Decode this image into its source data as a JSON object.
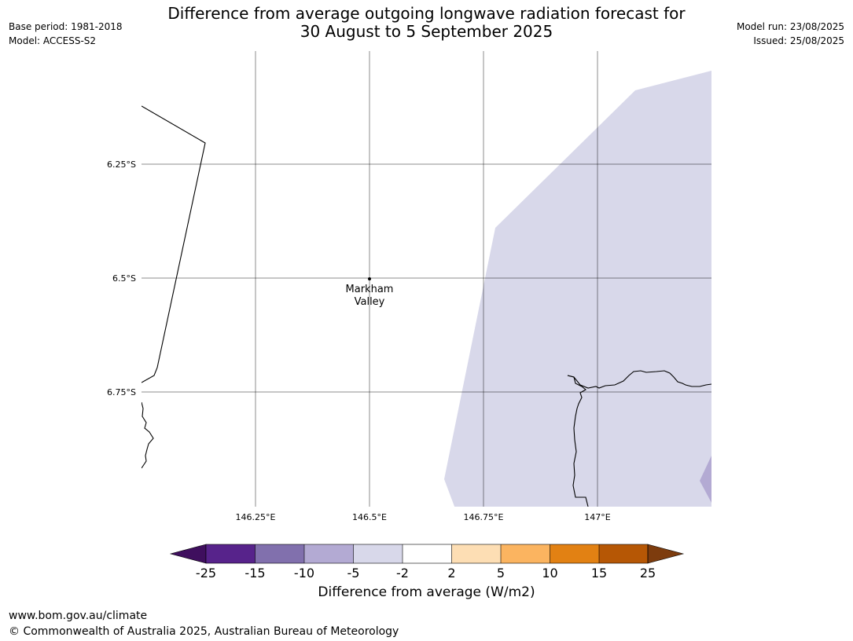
{
  "header": {
    "title_line1": "Difference from average outgoing longwave radiation forecast for",
    "title_line2": "30 August to 5 September 2025",
    "base_period": "Base period: 1981-2018",
    "model": "Model: ACCESS-S2",
    "model_run": "Model run: 23/08/2025",
    "issued": "Issued: 25/08/2025"
  },
  "map": {
    "lat_labels": [
      "6.25°S",
      "6.5°S",
      "6.75°S"
    ],
    "lon_labels": [
      "146.25°E",
      "146.5°E",
      "146.75°E",
      "147°E"
    ],
    "location": {
      "name_line1": "Markham",
      "name_line2": "Valley",
      "lat": -6.5,
      "lon": 146.5
    },
    "anomaly_fill_color": "#d8d8ea",
    "anomaly_fill_color_strong": "#b3aad3"
  },
  "colorbar": {
    "label": "Difference from average (W/m2)",
    "ticks": [
      "-25",
      "-15",
      "-10",
      "-5",
      "-2",
      "2",
      "5",
      "10",
      "15",
      "25"
    ],
    "colors": [
      "#3f0f5e",
      "#57238b",
      "#8170ad",
      "#b3aad3",
      "#d8d8ea",
      "#ffffff",
      "#fddeb4",
      "#fbb460",
      "#e28113",
      "#b65705",
      "#7d3c0e"
    ]
  },
  "footer": {
    "url": "www.bom.gov.au/climate",
    "copyright": "© Commonwealth of Australia 2025, Australian Bureau of Meteorology"
  }
}
